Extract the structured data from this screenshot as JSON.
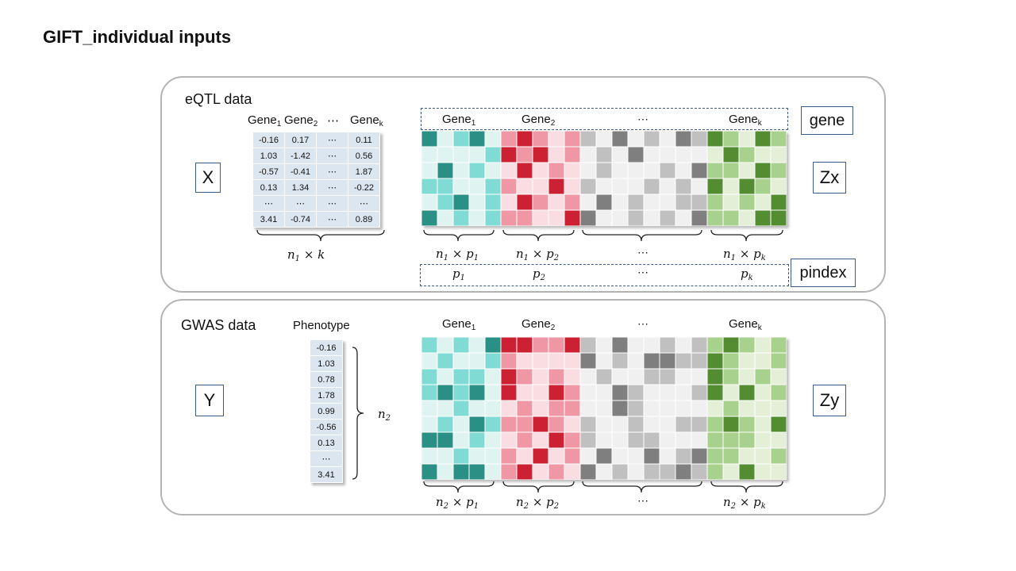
{
  "title": "GIFT_individual inputs",
  "eqtl": {
    "label": "eQTL data",
    "x_label": "X",
    "zx_label": "Zx",
    "gene_box": "gene",
    "pindex_box": "pindex",
    "x_headers": [
      "Gene",
      "Gene",
      "⋯",
      "Gene"
    ],
    "x_header_subs": [
      "1",
      "2",
      "",
      "k"
    ],
    "x_rows": [
      [
        "-0.16",
        "0.17",
        "⋯",
        "0.11"
      ],
      [
        "1.03",
        "-1.42",
        "⋯",
        "0.56"
      ],
      [
        "-0.57",
        "-0.41",
        "⋯",
        "1.87"
      ],
      [
        "0.13",
        "1.34",
        "⋯",
        "-0.22"
      ],
      [
        "⋯",
        "⋯",
        "⋯",
        "⋯"
      ],
      [
        "3.41",
        "-0.74",
        "⋯",
        "0.89"
      ]
    ],
    "x_dim": {
      "base": "n",
      "sub": "1",
      "rest": " × k"
    },
    "gene_names": [
      "Gene",
      "Gene",
      "⋯",
      "Gene"
    ],
    "gene_subs": [
      "1",
      "2",
      "",
      "k"
    ],
    "dims": [
      {
        "base": "n",
        "sub": "1",
        "mid": " × p",
        "sub2": "1"
      },
      {
        "base": "n",
        "sub": "1",
        "mid": " × p",
        "sub2": "2"
      },
      {
        "text": "⋯"
      },
      {
        "base": "n",
        "sub": "1",
        "mid": " × p",
        "sub2": "k"
      }
    ],
    "pindex_items": [
      {
        "base": "p",
        "sub": "1"
      },
      {
        "base": "p",
        "sub": "2"
      },
      {
        "text": "⋯"
      },
      {
        "base": "p",
        "sub": "k"
      }
    ]
  },
  "gwas": {
    "label": "GWAS data",
    "y_label": "Y",
    "zy_label": "Zy",
    "phenotype_label": "Phenotype",
    "phenotype_values": [
      "-0.16",
      "1.03",
      "0.78",
      "1.78",
      "0.99",
      "-0.56",
      "0.13",
      "⋯",
      "3.41"
    ],
    "n2": {
      "base": "n",
      "sub": "2"
    },
    "gene_names": [
      "Gene",
      "Gene",
      "⋯",
      "Gene"
    ],
    "gene_subs": [
      "1",
      "2",
      "",
      "k"
    ],
    "dims": [
      {
        "base": "n",
        "sub": "2",
        "mid": " × p",
        "sub2": "1"
      },
      {
        "base": "n",
        "sub": "2",
        "mid": " × p",
        "sub2": "2"
      },
      {
        "text": "⋯"
      },
      {
        "base": "n",
        "sub": "2",
        "mid": " × p",
        "sub2": "k"
      }
    ]
  },
  "colors": {
    "teal": [
      "#dff3f1",
      "#7fdbd4",
      "#2a8f84"
    ],
    "red": [
      "#f9dde2",
      "#ef97a4",
      "#cc2033"
    ],
    "gray": [
      "#f0f0f0",
      "#c0c0c0",
      "#7f7f7f"
    ],
    "green": [
      "#e3efd6",
      "#a9d18e",
      "#538c31"
    ]
  },
  "eqtl_grid": [
    [
      2,
      0,
      1,
      2,
      0,
      1,
      2,
      1,
      0,
      1,
      1,
      0,
      2,
      0,
      1,
      0,
      2,
      1,
      2,
      1,
      0,
      2,
      1
    ],
    [
      0,
      0,
      0,
      0,
      1,
      2,
      1,
      2,
      0,
      1,
      0,
      1,
      0,
      2,
      0,
      0,
      0,
      0,
      0,
      2,
      1,
      0,
      0
    ],
    [
      0,
      2,
      0,
      1,
      0,
      0,
      2,
      0,
      1,
      0,
      0,
      1,
      0,
      0,
      0,
      1,
      0,
      2,
      1,
      1,
      0,
      2,
      1
    ],
    [
      1,
      1,
      0,
      0,
      1,
      1,
      0,
      0,
      2,
      0,
      1,
      0,
      0,
      0,
      1,
      0,
      1,
      0,
      2,
      0,
      2,
      1,
      0
    ],
    [
      0,
      1,
      2,
      0,
      1,
      0,
      2,
      1,
      0,
      1,
      0,
      2,
      0,
      1,
      0,
      0,
      1,
      1,
      1,
      0,
      1,
      0,
      2
    ],
    [
      2,
      0,
      1,
      0,
      1,
      1,
      1,
      0,
      0,
      2,
      2,
      0,
      0,
      1,
      0,
      1,
      0,
      2,
      1,
      1,
      0,
      2,
      2
    ]
  ],
  "gwas_grid": [
    [
      1,
      0,
      1,
      0,
      2,
      2,
      2,
      1,
      1,
      2,
      1,
      0,
      2,
      0,
      0,
      1,
      0,
      1,
      1,
      2,
      1,
      0,
      1
    ],
    [
      0,
      1,
      0,
      0,
      1,
      1,
      0,
      0,
      0,
      0,
      2,
      0,
      1,
      0,
      2,
      2,
      1,
      1,
      2,
      1,
      0,
      0,
      1
    ],
    [
      1,
      0,
      1,
      1,
      0,
      2,
      1,
      0,
      1,
      0,
      0,
      1,
      0,
      0,
      1,
      1,
      0,
      0,
      2,
      1,
      0,
      1,
      0
    ],
    [
      1,
      2,
      1,
      2,
      0,
      2,
      0,
      0,
      2,
      1,
      0,
      0,
      2,
      1,
      0,
      0,
      0,
      1,
      2,
      0,
      2,
      0,
      1
    ],
    [
      0,
      0,
      1,
      0,
      0,
      0,
      1,
      0,
      1,
      1,
      0,
      0,
      2,
      1,
      0,
      0,
      0,
      0,
      0,
      1,
      0,
      0,
      0
    ],
    [
      0,
      1,
      0,
      2,
      1,
      1,
      1,
      2,
      1,
      0,
      1,
      0,
      0,
      1,
      0,
      0,
      1,
      1,
      1,
      2,
      1,
      0,
      2
    ],
    [
      2,
      2,
      0,
      1,
      0,
      0,
      1,
      0,
      2,
      1,
      1,
      0,
      0,
      1,
      1,
      0,
      0,
      0,
      1,
      1,
      1,
      0,
      0
    ],
    [
      0,
      0,
      1,
      0,
      0,
      1,
      0,
      2,
      0,
      1,
      0,
      2,
      0,
      0,
      2,
      0,
      1,
      2,
      1,
      1,
      0,
      0,
      1
    ],
    [
      2,
      0,
      2,
      2,
      0,
      1,
      2,
      0,
      1,
      0,
      2,
      0,
      1,
      0,
      1,
      1,
      2,
      1,
      1,
      0,
      2,
      0,
      0
    ]
  ]
}
